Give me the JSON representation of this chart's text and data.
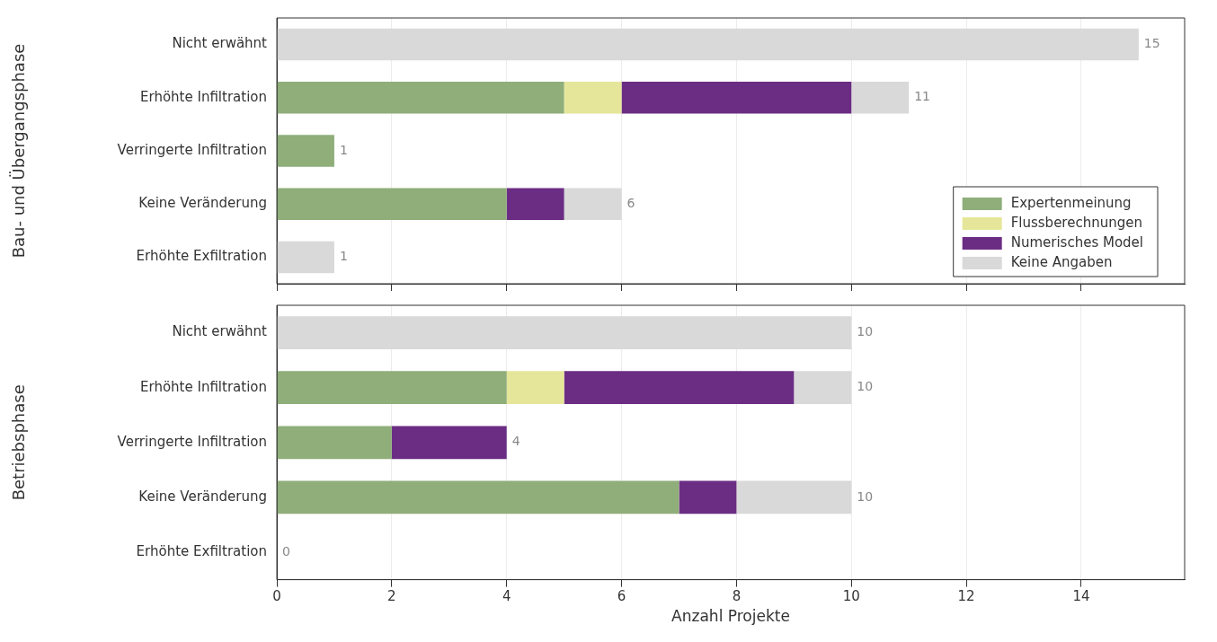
{
  "chart_data": [
    {
      "type": "bar",
      "orientation": "horizontal",
      "stacked": true,
      "ylabel": "Bau- und Übergangsphase",
      "categories": [
        "Nicht erwähnt",
        "Erhöhte Infiltration",
        "Verringerte Infiltration",
        "Keine Veränderung",
        "Erhöhte Exfiltration"
      ],
      "series": [
        {
          "name": "Expertenmeinung",
          "color": "#8fae7a",
          "values": [
            0,
            5,
            1,
            4,
            0
          ]
        },
        {
          "name": "Flussberechnungen",
          "color": "#e6e69a",
          "values": [
            0,
            1,
            0,
            0,
            0
          ]
        },
        {
          "name": "Numerisches Model",
          "color": "#6b2d84",
          "values": [
            0,
            4,
            0,
            1,
            0
          ]
        },
        {
          "name": "Keine Angaben",
          "color": "#d9d9d9",
          "values": [
            15,
            1,
            0,
            1,
            1
          ]
        }
      ],
      "totals": [
        "15",
        "11",
        "1",
        "6",
        "1"
      ],
      "xlim": [
        0,
        15.8
      ],
      "xticks": [
        0,
        2,
        4,
        6,
        8,
        10,
        12,
        14
      ],
      "grid": "x",
      "legend": "bottom right",
      "tick_labels": "y"
    },
    {
      "type": "bar",
      "orientation": "horizontal",
      "stacked": true,
      "ylabel": "Betriebsphase",
      "xlabel": "Anzahl Projekte",
      "categories": [
        "Nicht erwähnt",
        "Erhöhte Infiltration",
        "Verringerte Infiltration",
        "Keine Veränderung",
        "Erhöhte Exfiltration"
      ],
      "series": [
        {
          "color": "#8fae7a",
          "values": [
            0,
            4,
            2,
            7,
            0
          ]
        },
        {
          "color": "#e6e69a",
          "values": [
            0,
            1,
            0,
            0,
            0
          ]
        },
        {
          "color": "#6b2d84",
          "values": [
            0,
            4,
            2,
            1,
            0
          ]
        },
        {
          "color": "#d9d9d9",
          "values": [
            10,
            1,
            0,
            2,
            0
          ]
        }
      ],
      "totals": [
        "10",
        "10",
        "4",
        "10",
        "0"
      ],
      "xlim": [
        0,
        15.8
      ],
      "xticks": [
        0,
        2,
        4,
        6,
        8,
        10,
        12,
        14
      ],
      "grid": "x"
    }
  ]
}
